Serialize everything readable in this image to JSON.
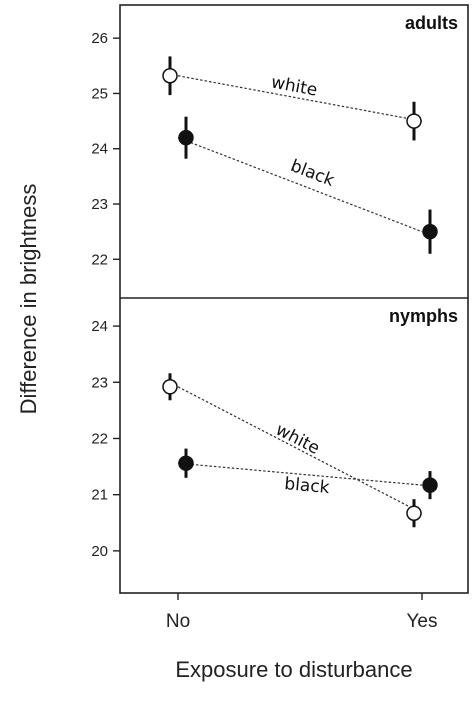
{
  "chart_data": {
    "type": "line",
    "xlabel": "Exposure to disturbance",
    "ylabel": "Difference in brightness",
    "categories": [
      "No",
      "Yes"
    ],
    "grid": false,
    "panels": [
      {
        "title": "adults",
        "ylim": [
          21.3,
          26.6
        ],
        "yticks": [
          22,
          23,
          24,
          25,
          26
        ],
        "series": [
          {
            "name": "white",
            "marker": "open-circle",
            "values": [
              25.32,
              24.5
            ],
            "ci_low": [
              24.97,
              24.15
            ],
            "ci_high": [
              25.67,
              24.85
            ]
          },
          {
            "name": "black",
            "marker": "filled-circle",
            "values": [
              24.2,
              22.5
            ],
            "ci_low": [
              23.82,
              22.1
            ],
            "ci_high": [
              24.58,
              22.9
            ]
          }
        ]
      },
      {
        "title": "nymphs",
        "ylim": [
          19.25,
          24.5
        ],
        "yticks": [
          20,
          21,
          22,
          23,
          24
        ],
        "series": [
          {
            "name": "white",
            "marker": "open-circle",
            "values": [
              22.92,
              20.67
            ],
            "ci_low": [
              22.68,
              20.42
            ],
            "ci_high": [
              23.16,
              20.92
            ]
          },
          {
            "name": "black",
            "marker": "filled-circle",
            "values": [
              21.56,
              21.17
            ],
            "ci_low": [
              21.3,
              20.92
            ],
            "ci_high": [
              21.82,
              21.42
            ]
          }
        ]
      }
    ]
  }
}
